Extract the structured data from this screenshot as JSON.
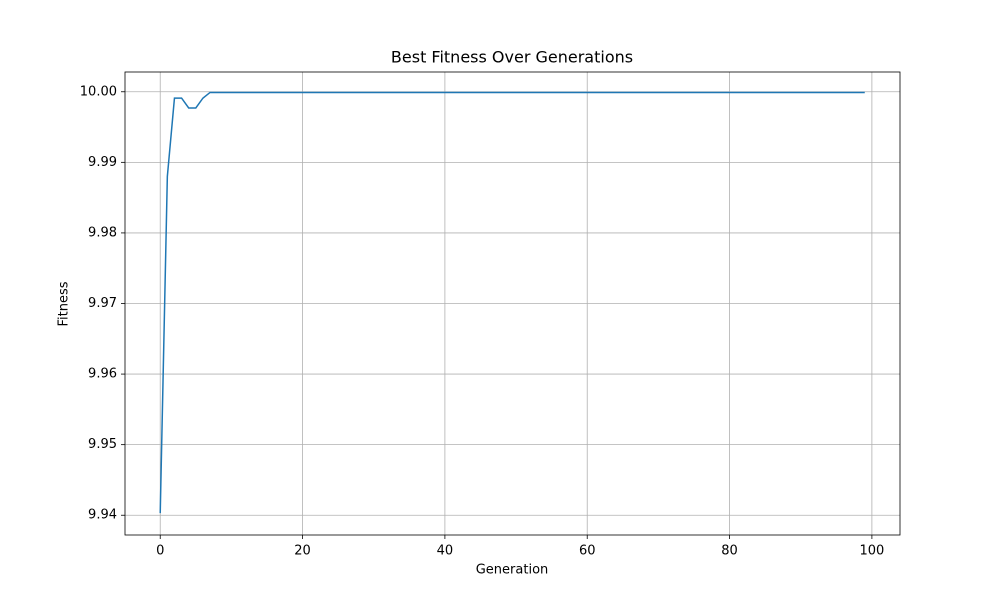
{
  "chart_data": {
    "type": "line",
    "title": "Best Fitness Over Generations",
    "x_label": "Generation",
    "y_label": "Fitness",
    "x": [
      0,
      1,
      2,
      3,
      4,
      5,
      6,
      7,
      8,
      9,
      10,
      11,
      12,
      13,
      14,
      15,
      16,
      17,
      18,
      19,
      20,
      21,
      22,
      23,
      24,
      25,
      26,
      27,
      28,
      29,
      30,
      31,
      32,
      33,
      34,
      35,
      36,
      37,
      38,
      39,
      40,
      41,
      42,
      43,
      44,
      45,
      46,
      47,
      48,
      49,
      50,
      51,
      52,
      53,
      54,
      55,
      56,
      57,
      58,
      59,
      60,
      61,
      62,
      63,
      64,
      65,
      66,
      67,
      68,
      69,
      70,
      71,
      72,
      73,
      74,
      75,
      76,
      77,
      78,
      79,
      80,
      81,
      82,
      83,
      84,
      85,
      86,
      87,
      88,
      89,
      90,
      91,
      92,
      93,
      94,
      95,
      96,
      97,
      98,
      99
    ],
    "values": [
      9.9403,
      9.988,
      9.9991,
      9.9991,
      9.9977,
      9.9977,
      9.9991,
      9.9999,
      9.9999,
      9.9999,
      9.9999,
      9.9999,
      9.9999,
      9.9999,
      9.9999,
      9.9999,
      9.9999,
      9.9999,
      9.9999,
      9.9999,
      9.9999,
      9.9999,
      9.9999,
      9.9999,
      9.9999,
      9.9999,
      9.9999,
      9.9999,
      9.9999,
      9.9999,
      9.9999,
      9.9999,
      9.9999,
      9.9999,
      9.9999,
      9.9999,
      9.9999,
      9.9999,
      9.9999,
      9.9999,
      9.9999,
      9.9999,
      9.9999,
      9.9999,
      9.9999,
      9.9999,
      9.9999,
      9.9999,
      9.9999,
      9.9999,
      9.9999,
      9.9999,
      9.9999,
      9.9999,
      9.9999,
      9.9999,
      9.9999,
      9.9999,
      9.9999,
      9.9999,
      9.9999,
      9.9999,
      9.9999,
      9.9999,
      9.9999,
      9.9999,
      9.9999,
      9.9999,
      9.9999,
      9.9999,
      9.9999,
      9.9999,
      9.9999,
      9.9999,
      9.9999,
      9.9999,
      9.9999,
      9.9999,
      9.9999,
      9.9999,
      9.9999,
      9.9999,
      9.9999,
      9.9999,
      9.9999,
      9.9999,
      9.9999,
      9.9999,
      9.9999,
      9.9999,
      9.9999,
      9.9999,
      9.9999,
      9.9999,
      9.9999,
      9.9999,
      9.9999,
      9.9999,
      9.9999,
      9.9999
    ],
    "color": "#1f77b4",
    "xlim": [
      -4.95,
      103.95
    ],
    "xticks": [
      0,
      20,
      40,
      60,
      80,
      100
    ],
    "ylim": [
      9.9372,
      10.0028
    ],
    "yticks": [
      9.94,
      9.95,
      9.96,
      9.97,
      9.98,
      9.99,
      {
        "value": 10,
        "label": "10.00"
      }
    ],
    "grid": true
  }
}
